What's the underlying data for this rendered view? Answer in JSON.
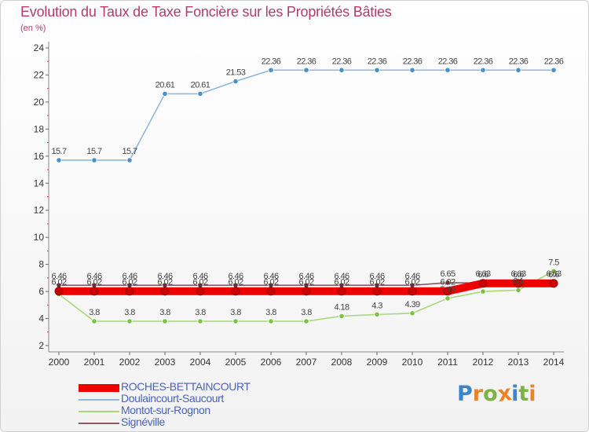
{
  "title": "Evolution du Taux de Taxe Foncière sur les Propriétés Bâties",
  "unit_label": "(en %)",
  "logo": {
    "letters": [
      "P",
      "r",
      "o",
      "x",
      "i",
      "t",
      "i"
    ],
    "colors": [
      "#3a86c8",
      "#e8852a",
      "#7cb342",
      "#e8852a",
      "#3a86c8",
      "#7cb342",
      "#e8852a"
    ]
  },
  "chart_data": {
    "type": "line",
    "title": "Evolution du Taux de Taxe Foncière sur les Propriétés Bâties",
    "ylabel": "(en %)",
    "xlabel": "",
    "ylim": [
      2,
      24
    ],
    "yticks": [
      "2",
      "4",
      "6",
      "8",
      "10",
      "12",
      "14",
      "16",
      "18",
      "20",
      "22",
      "24"
    ],
    "categories": [
      "2000",
      "2001",
      "2002",
      "2003",
      "2004",
      "2005",
      "2006",
      "2007",
      "2008",
      "2009",
      "2010",
      "2011",
      "2012",
      "2013",
      "2014"
    ],
    "series": [
      {
        "name": "Signéville",
        "color": "#8a5a66",
        "marker": "#6b2f3e",
        "values": [
          6.46,
          6.46,
          6.46,
          6.46,
          6.46,
          6.46,
          6.46,
          6.46,
          6.46,
          6.46,
          6.46,
          6.65,
          6.63,
          6.63,
          6.63
        ],
        "labels": [
          "6.46",
          "6.46",
          "6.46",
          "6.46",
          "6.46",
          "6.46",
          "6.46",
          "6.46",
          "6.46",
          "6.46",
          "6.46",
          "6.65",
          "6.63",
          "6.63",
          "6.63"
        ]
      },
      {
        "name": "Montot-sur-Rognon",
        "color": "#a8d87a",
        "marker": "#7cc242",
        "values": [
          5.8,
          3.8,
          3.8,
          3.8,
          3.8,
          3.8,
          3.8,
          3.8,
          4.18,
          4.3,
          4.39,
          5.49,
          6.0,
          6.1,
          7.5
        ],
        "labels": [
          "",
          "3.8",
          "3.8",
          "3.8",
          "3.8",
          "3.8",
          "3.8",
          "3.8",
          "4.18",
          "4.3",
          "4.39",
          "5.49",
          "",
          "6.1",
          "7.5"
        ]
      },
      {
        "name": "Doulaincourt-Saucourt",
        "color": "#8fb8dd",
        "marker": "#4a90c8",
        "values": [
          15.7,
          15.7,
          15.7,
          20.61,
          20.61,
          21.53,
          22.36,
          22.36,
          22.36,
          22.36,
          22.36,
          22.36,
          22.36,
          22.36,
          22.36
        ],
        "labels": [
          "15.7",
          "15.7",
          "15.7",
          "20.61",
          "20.61",
          "21.53",
          "22.36",
          "22.36",
          "22.36",
          "22.36",
          "22.36",
          "22.36",
          "22.36",
          "22.36",
          "22.36"
        ]
      },
      {
        "name": "ROCHES-BETTAINCOURT",
        "color": "#ee0000",
        "marker": "#cc0000",
        "thick": true,
        "values": [
          6.02,
          6.02,
          6.02,
          6.02,
          6.02,
          6.02,
          6.02,
          6.02,
          6.02,
          6.02,
          6.02,
          6.02,
          6.6,
          6.6,
          6.6
        ],
        "labels": [
          "6.02",
          "6.02",
          "6.02",
          "6.02",
          "6.02",
          "6.02",
          "6.02",
          "6.02",
          "6.02",
          "6.02",
          "6.02",
          "6.02",
          "6.6",
          "6.6",
          "6.6"
        ]
      }
    ],
    "legend": [
      {
        "name": "ROCHES-BETTAINCOURT",
        "color": "#ee0000",
        "thick": true
      },
      {
        "name": "Doulaincourt-Saucourt",
        "color": "#8fb8dd",
        "thick": false
      },
      {
        "name": "Montot-sur-Rognon",
        "color": "#a8d87a",
        "thick": false
      },
      {
        "name": "Signéville",
        "color": "#8a5a66",
        "thick": false
      }
    ]
  }
}
